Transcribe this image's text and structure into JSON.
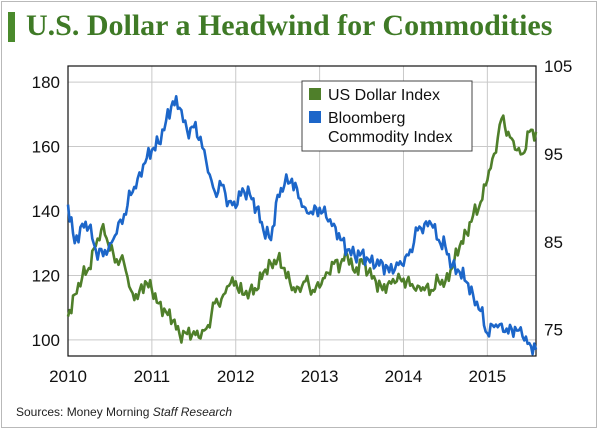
{
  "title": "U.S. Dollar a Headwind for Commodities",
  "source_prefix": "Sources: Money Morning ",
  "source_italic": "Staff Research",
  "colors": {
    "title": "#3f7a26",
    "title_bar": "#4a8a2c",
    "usd_series": "#4f7f2a",
    "bcom_series": "#1c66c9",
    "grid": "#c9c9c9"
  },
  "chart_data": {
    "type": "line",
    "title": "U.S. Dollar a Headwind for Commodities",
    "xlabel": "",
    "ylabel_left": "",
    "ylabel_right": "",
    "x_ticks": [
      "2010",
      "2011",
      "2012",
      "2013",
      "2014",
      "2015"
    ],
    "x_range": [
      2010.0,
      2015.58
    ],
    "y_left": {
      "range": [
        95,
        185
      ],
      "ticks": [
        "100",
        "120",
        "140",
        "160",
        "180"
      ],
      "grid": true
    },
    "y_right": {
      "range": [
        72,
        105
      ],
      "ticks": [
        "75",
        "85",
        "95",
        "105"
      ]
    },
    "legend_position": "top-right",
    "series": [
      {
        "name": "US Dollar Index",
        "axis": "right",
        "color": "#4f7f2a",
        "points": [
          [
            2010.0,
            76.5
          ],
          [
            2010.08,
            79.0
          ],
          [
            2010.17,
            81.0
          ],
          [
            2010.25,
            82.0
          ],
          [
            2010.33,
            84.5
          ],
          [
            2010.42,
            87.0
          ],
          [
            2010.5,
            84.0
          ],
          [
            2010.58,
            83.0
          ],
          [
            2010.67,
            82.5
          ],
          [
            2010.75,
            79.5
          ],
          [
            2010.83,
            78.5
          ],
          [
            2010.92,
            80.5
          ],
          [
            2011.0,
            79.5
          ],
          [
            2011.08,
            78.0
          ],
          [
            2011.17,
            77.0
          ],
          [
            2011.25,
            76.0
          ],
          [
            2011.33,
            74.5
          ],
          [
            2011.42,
            74.5
          ],
          [
            2011.5,
            74.8
          ],
          [
            2011.58,
            74.0
          ],
          [
            2011.67,
            75.5
          ],
          [
            2011.75,
            78.0
          ],
          [
            2011.83,
            78.5
          ],
          [
            2011.92,
            80.0
          ],
          [
            2012.0,
            80.5
          ],
          [
            2012.08,
            79.0
          ],
          [
            2012.17,
            79.5
          ],
          [
            2012.25,
            79.5
          ],
          [
            2012.33,
            81.5
          ],
          [
            2012.42,
            82.5
          ],
          [
            2012.5,
            83.0
          ],
          [
            2012.58,
            82.0
          ],
          [
            2012.67,
            79.5
          ],
          [
            2012.75,
            79.8
          ],
          [
            2012.83,
            80.5
          ],
          [
            2012.92,
            79.5
          ],
          [
            2013.0,
            79.8
          ],
          [
            2013.08,
            81.5
          ],
          [
            2013.17,
            82.5
          ],
          [
            2013.25,
            82.5
          ],
          [
            2013.33,
            83.5
          ],
          [
            2013.42,
            81.5
          ],
          [
            2013.5,
            83.0
          ],
          [
            2013.58,
            81.5
          ],
          [
            2013.67,
            80.5
          ],
          [
            2013.75,
            79.5
          ],
          [
            2013.83,
            80.5
          ],
          [
            2013.92,
            80.5
          ],
          [
            2014.0,
            80.8
          ],
          [
            2014.08,
            80.0
          ],
          [
            2014.17,
            80.0
          ],
          [
            2014.25,
            79.5
          ],
          [
            2014.33,
            79.5
          ],
          [
            2014.42,
            80.5
          ],
          [
            2014.5,
            80.5
          ],
          [
            2014.58,
            82.0
          ],
          [
            2014.67,
            84.5
          ],
          [
            2014.75,
            86.0
          ],
          [
            2014.83,
            88.0
          ],
          [
            2014.92,
            89.5
          ],
          [
            2015.0,
            92.0
          ],
          [
            2015.08,
            95.0
          ],
          [
            2015.17,
            99.0
          ],
          [
            2015.25,
            97.5
          ],
          [
            2015.33,
            95.5
          ],
          [
            2015.42,
            95.0
          ],
          [
            2015.5,
            97.5
          ],
          [
            2015.58,
            97.5
          ]
        ]
      },
      {
        "name": "Bloomberg Commodity Index",
        "axis": "left",
        "color": "#1c66c9",
        "points": [
          [
            2010.0,
            142.0
          ],
          [
            2010.08,
            130.0
          ],
          [
            2010.17,
            136.0
          ],
          [
            2010.25,
            135.0
          ],
          [
            2010.33,
            128.0
          ],
          [
            2010.42,
            126.0
          ],
          [
            2010.5,
            130.0
          ],
          [
            2010.58,
            133.0
          ],
          [
            2010.67,
            139.0
          ],
          [
            2010.75,
            145.0
          ],
          [
            2010.83,
            150.0
          ],
          [
            2010.92,
            155.0
          ],
          [
            2011.0,
            159.0
          ],
          [
            2011.08,
            161.0
          ],
          [
            2011.17,
            168.0
          ],
          [
            2011.25,
            174.0
          ],
          [
            2011.33,
            172.0
          ],
          [
            2011.42,
            165.0
          ],
          [
            2011.5,
            166.0
          ],
          [
            2011.58,
            163.0
          ],
          [
            2011.67,
            152.0
          ],
          [
            2011.75,
            146.0
          ],
          [
            2011.83,
            148.0
          ],
          [
            2011.92,
            143.0
          ],
          [
            2012.0,
            141.0
          ],
          [
            2012.08,
            147.0
          ],
          [
            2012.17,
            145.0
          ],
          [
            2012.25,
            141.0
          ],
          [
            2012.33,
            134.0
          ],
          [
            2012.42,
            131.0
          ],
          [
            2012.5,
            145.0
          ],
          [
            2012.58,
            148.0
          ],
          [
            2012.67,
            150.0
          ],
          [
            2012.75,
            144.0
          ],
          [
            2012.83,
            141.0
          ],
          [
            2012.92,
            139.0
          ],
          [
            2013.0,
            141.0
          ],
          [
            2013.08,
            138.0
          ],
          [
            2013.17,
            136.0
          ],
          [
            2013.25,
            131.0
          ],
          [
            2013.33,
            128.0
          ],
          [
            2013.42,
            126.0
          ],
          [
            2013.5,
            127.0
          ],
          [
            2013.58,
            125.0
          ],
          [
            2013.67,
            123.0
          ],
          [
            2013.75,
            124.0
          ],
          [
            2013.83,
            121.0
          ],
          [
            2013.92,
            124.0
          ],
          [
            2014.0,
            123.0
          ],
          [
            2014.08,
            128.0
          ],
          [
            2014.17,
            134.0
          ],
          [
            2014.25,
            136.0
          ],
          [
            2014.33,
            136.0
          ],
          [
            2014.42,
            131.0
          ],
          [
            2014.5,
            129.0
          ],
          [
            2014.58,
            123.0
          ],
          [
            2014.67,
            121.0
          ],
          [
            2014.75,
            118.0
          ],
          [
            2014.83,
            114.0
          ],
          [
            2014.92,
            109.0
          ],
          [
            2015.0,
            102.0
          ],
          [
            2015.08,
            104.0
          ],
          [
            2015.17,
            105.0
          ],
          [
            2015.25,
            102.0
          ],
          [
            2015.33,
            104.0
          ],
          [
            2015.42,
            101.0
          ],
          [
            2015.5,
            99.0
          ],
          [
            2015.58,
            97.0
          ]
        ]
      }
    ]
  }
}
